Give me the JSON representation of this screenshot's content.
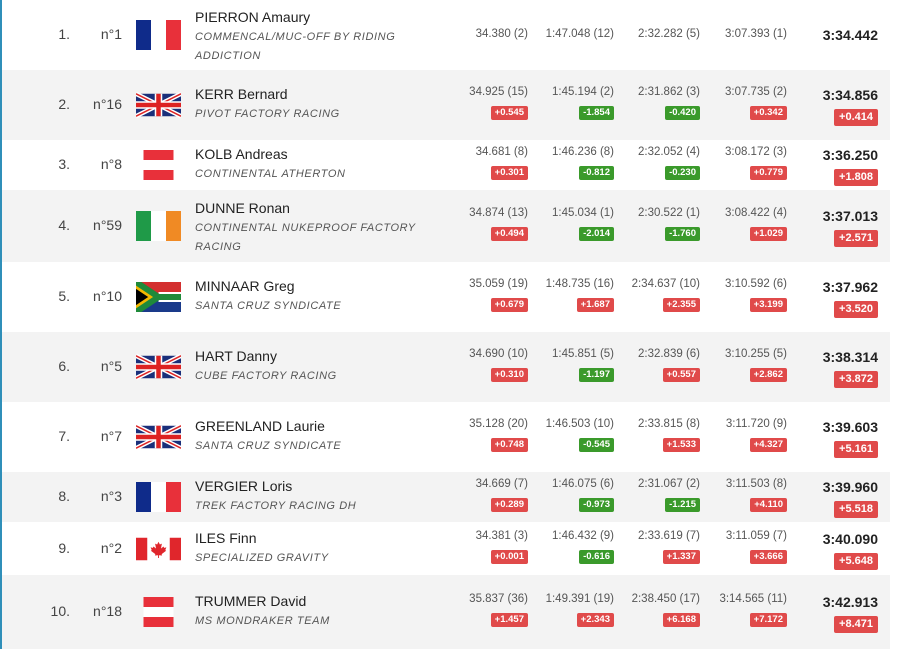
{
  "rows": [
    {
      "rank": "1.",
      "num": "n°1",
      "flag": "fr",
      "name": "PIERRON Amaury",
      "team": "COMMENCAL/MUC-OFF BY RIDING ADDICTION",
      "s1": "34.380 (2)",
      "s1d": "",
      "s2": "1:47.048 (12)",
      "s2d": "",
      "s3": "2:32.282 (5)",
      "s3d": "",
      "s4": "3:07.393 (1)",
      "s4d": "",
      "total": "3:34.442",
      "gap": ""
    },
    {
      "rank": "2.",
      "num": "n°16",
      "flag": "gb",
      "name": "KERR Bernard",
      "team": "PIVOT FACTORY RACING",
      "s1": "34.925 (15)",
      "s1d": "+0.545",
      "s2": "1:45.194 (2)",
      "s2d": "-1.854",
      "s3": "2:31.862 (3)",
      "s3d": "-0.420",
      "s4": "3:07.735 (2)",
      "s4d": "+0.342",
      "total": "3:34.856",
      "gap": "+0.414"
    },
    {
      "rank": "3.",
      "num": "n°8",
      "flag": "at",
      "name": "KOLB Andreas",
      "team": "CONTINENTAL ATHERTON",
      "s1": "34.681 (8)",
      "s1d": "+0.301",
      "s2": "1:46.236 (8)",
      "s2d": "-0.812",
      "s3": "2:32.052 (4)",
      "s3d": "-0.230",
      "s4": "3:08.172 (3)",
      "s4d": "+0.779",
      "total": "3:36.250",
      "gap": "+1.808"
    },
    {
      "rank": "4.",
      "num": "n°59",
      "flag": "ie",
      "name": "DUNNE Ronan",
      "team": "CONTINENTAL NUKEPROOF FACTORY RACING",
      "s1": "34.874 (13)",
      "s1d": "+0.494",
      "s2": "1:45.034 (1)",
      "s2d": "-2.014",
      "s3": "2:30.522 (1)",
      "s3d": "-1.760",
      "s4": "3:08.422 (4)",
      "s4d": "+1.029",
      "total": "3:37.013",
      "gap": "+2.571"
    },
    {
      "rank": "5.",
      "num": "n°10",
      "flag": "za",
      "name": "MINNAAR Greg",
      "team": "SANTA CRUZ SYNDICATE",
      "s1": "35.059 (19)",
      "s1d": "+0.679",
      "s2": "1:48.735 (16)",
      "s2d": "+1.687",
      "s3": "2:34.637 (10)",
      "s3d": "+2.355",
      "s4": "3:10.592 (6)",
      "s4d": "+3.199",
      "total": "3:37.962",
      "gap": "+3.520"
    },
    {
      "rank": "6.",
      "num": "n°5",
      "flag": "gb",
      "name": "HART Danny",
      "team": "CUBE FACTORY RACING",
      "s1": "34.690 (10)",
      "s1d": "+0.310",
      "s2": "1:45.851 (5)",
      "s2d": "-1.197",
      "s3": "2:32.839 (6)",
      "s3d": "+0.557",
      "s4": "3:10.255 (5)",
      "s4d": "+2.862",
      "total": "3:38.314",
      "gap": "+3.872"
    },
    {
      "rank": "7.",
      "num": "n°7",
      "flag": "gb",
      "name": "GREENLAND Laurie",
      "team": "SANTA CRUZ SYNDICATE",
      "s1": "35.128 (20)",
      "s1d": "+0.748",
      "s2": "1:46.503 (10)",
      "s2d": "-0.545",
      "s3": "2:33.815 (8)",
      "s3d": "+1.533",
      "s4": "3:11.720 (9)",
      "s4d": "+4.327",
      "total": "3:39.603",
      "gap": "+5.161"
    },
    {
      "rank": "8.",
      "num": "n°3",
      "flag": "fr",
      "name": "VERGIER Loris",
      "team": "TREK FACTORY RACING DH",
      "s1": "34.669 (7)",
      "s1d": "+0.289",
      "s2": "1:46.075 (6)",
      "s2d": "-0.973",
      "s3": "2:31.067 (2)",
      "s3d": "-1.215",
      "s4": "3:11.503 (8)",
      "s4d": "+4.110",
      "total": "3:39.960",
      "gap": "+5.518"
    },
    {
      "rank": "9.",
      "num": "n°2",
      "flag": "ca",
      "name": "ILES Finn",
      "team": "SPECIALIZED GRAVITY",
      "s1": "34.381 (3)",
      "s1d": "+0.001",
      "s2": "1:46.432 (9)",
      "s2d": "-0.616",
      "s3": "2:33.619 (7)",
      "s3d": "+1.337",
      "s4": "3:11.059 (7)",
      "s4d": "+3.666",
      "total": "3:40.090",
      "gap": "+5.648"
    },
    {
      "rank": "10.",
      "num": "n°18",
      "flag": "at",
      "name": "TRUMMER David",
      "team": "MS MONDRAKER TEAM",
      "s1": "35.837 (36)",
      "s1d": "+1.457",
      "s2": "1:49.391 (19)",
      "s2d": "+2.343",
      "s3": "2:38.450 (17)",
      "s3d": "+6.168",
      "s4": "3:14.565 (11)",
      "s4d": "+7.172",
      "total": "3:42.913",
      "gap": "+8.471"
    }
  ],
  "colors": {
    "positive": "#e04a4a",
    "negative": "#3a9a2b",
    "alt_row": "#f3f3f3",
    "accent": "#2f8fb9"
  }
}
